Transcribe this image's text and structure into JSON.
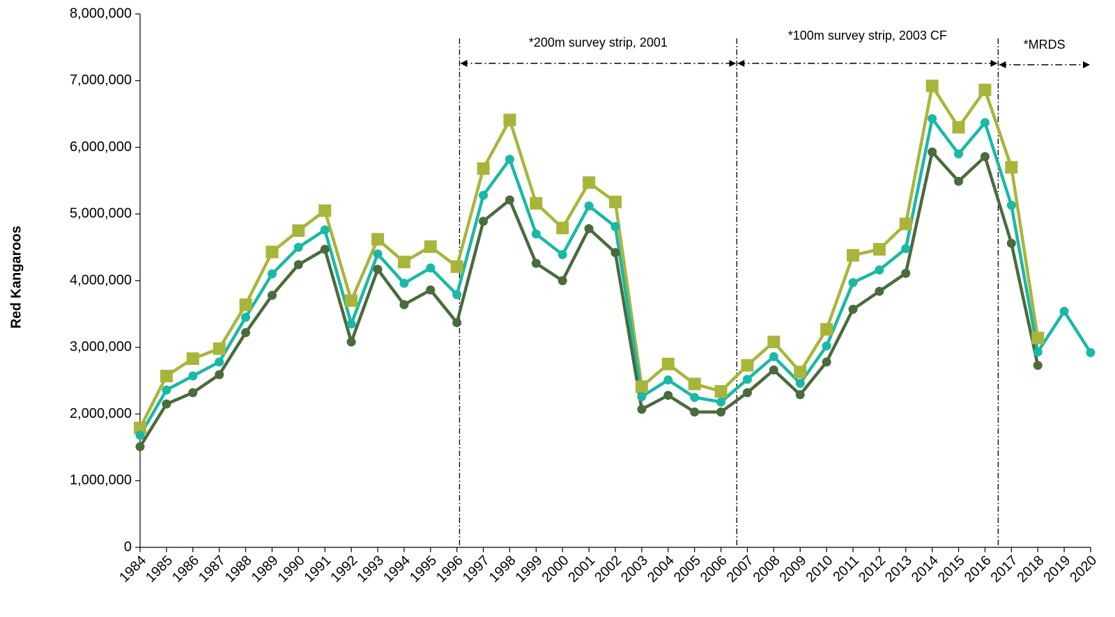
{
  "chart_data": {
    "type": "line",
    "y_label": "Red Kangaroos",
    "x": [
      1984,
      1985,
      1986,
      1987,
      1988,
      1989,
      1990,
      1991,
      1992,
      1993,
      1994,
      1995,
      1996,
      1997,
      1998,
      1999,
      2000,
      2001,
      2002,
      2003,
      2004,
      2005,
      2006,
      2007,
      2008,
      2009,
      2010,
      2011,
      2012,
      2013,
      2014,
      2015,
      2016,
      2017,
      2018,
      2019,
      2020
    ],
    "xlim": [
      1984,
      2020
    ],
    "xticks": [
      1984,
      1985,
      1986,
      1987,
      1988,
      1989,
      1990,
      1991,
      1992,
      1993,
      1994,
      1995,
      1996,
      1997,
      1998,
      1999,
      2000,
      2001,
      2002,
      2003,
      2004,
      2005,
      2006,
      2007,
      2008,
      2009,
      2010,
      2011,
      2012,
      2013,
      2014,
      2015,
      2016,
      2017,
      2018,
      2019,
      2020
    ],
    "ylim": [
      0,
      8000000
    ],
    "yticks": [
      0,
      {
        "value": 1000000,
        "label": "1,000,000"
      },
      {
        "value": 2000000,
        "label": "2,000,000"
      },
      {
        "value": 3000000,
        "label": "3,000,000"
      },
      {
        "value": 4000000,
        "label": "4,000,000"
      },
      {
        "value": 5000000,
        "label": "5,000,000"
      },
      {
        "value": 6000000,
        "label": "6,000,000"
      },
      {
        "value": 7000000,
        "label": "7,000,000"
      },
      {
        "value": 8000000,
        "label": "8,000,000"
      }
    ],
    "series": [
      {
        "color": "#a9b53a",
        "marker": "square",
        "values": [
          1790000,
          2570000,
          2830000,
          2980000,
          3640000,
          4430000,
          4750000,
          5050000,
          3700000,
          4620000,
          4280000,
          4510000,
          4210000,
          5680000,
          6410000,
          5160000,
          4790000,
          5470000,
          5180000,
          2410000,
          2750000,
          2450000,
          2340000,
          2730000,
          3080000,
          2630000,
          3270000,
          4380000,
          4470000,
          4850000,
          6920000,
          6300000,
          6860000,
          5700000,
          3140000,
          null,
          null
        ]
      },
      {
        "color": "#1ab8a6",
        "marker": "circle",
        "values": [
          1680000,
          2360000,
          2570000,
          2780000,
          3450000,
          4100000,
          4500000,
          4760000,
          3350000,
          4400000,
          3960000,
          4190000,
          3790000,
          5280000,
          5820000,
          4700000,
          4390000,
          5120000,
          4810000,
          2260000,
          2510000,
          2250000,
          2180000,
          2520000,
          2860000,
          2460000,
          3020000,
          3970000,
          4160000,
          4480000,
          6430000,
          5900000,
          6370000,
          5130000,
          2930000,
          3540000,
          2920000
        ]
      },
      {
        "color": "#4a6b3c",
        "marker": "circle",
        "values": [
          1510000,
          2150000,
          2320000,
          2590000,
          3220000,
          3780000,
          4240000,
          4470000,
          3080000,
          4170000,
          3640000,
          3860000,
          3370000,
          4890000,
          5210000,
          4260000,
          4000000,
          4780000,
          4420000,
          2070000,
          2280000,
          2030000,
          2030000,
          2320000,
          2660000,
          2290000,
          2780000,
          3570000,
          3840000,
          4110000,
          5930000,
          5490000,
          5860000,
          4560000,
          2730000,
          null,
          null
        ]
      }
    ],
    "annotations": [
      {
        "label": "*200m survey strip, 2001",
        "from": 1996.1,
        "to": 2006.6
      },
      {
        "label": "*100m survey strip, 2003 CF",
        "from": 2006.6,
        "to": 2016.5
      },
      {
        "label": "*MRDS",
        "from": 2016.5,
        "to": 2020
      }
    ]
  }
}
